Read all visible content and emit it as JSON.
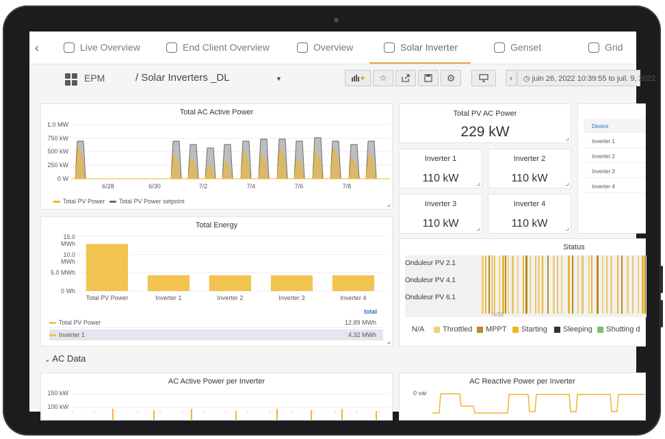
{
  "tabs": {
    "back": "‹",
    "items": [
      {
        "label": "Live Overview"
      },
      {
        "label": "End Client Overview"
      },
      {
        "label": "Overview"
      },
      {
        "label": "Solar Inverter"
      },
      {
        "label": "Genset"
      },
      {
        "label": "Grid"
      }
    ],
    "active": "Solar Inverter"
  },
  "header": {
    "app": "EPM",
    "dashboard": "/ Solar Inverters _DL",
    "time_range": "juin 26, 2022 10:39:55 to juil. 9, 2022"
  },
  "colors": {
    "accent": "#e2a53b",
    "pv": "#f0b428",
    "setpoint": "#6b6b6b",
    "bar": "#f2c34e"
  },
  "ac_power": {
    "title": "Total AC Active Power",
    "y_ticks": [
      "1.0 MW",
      "750 kW",
      "500 kW",
      "250 kW",
      "0 W"
    ],
    "x_ticks": [
      "6/28",
      "6/30",
      "7/2",
      "7/4",
      "7/6",
      "7/8"
    ],
    "legend": [
      "Total PV Power",
      "Total PV Power setpoint"
    ]
  },
  "total_pv": {
    "title": "Total PV AC Power",
    "value": "229 kW"
  },
  "inverters": [
    {
      "title": "Inverter 1",
      "value": "110 kW"
    },
    {
      "title": "Inverter 2",
      "value": "110 kW"
    },
    {
      "title": "Inverter 3",
      "value": "110 kW"
    },
    {
      "title": "Inverter 4",
      "value": "110 kW"
    }
  ],
  "device_table": {
    "header": "Device",
    "rows": [
      "Inverter 1",
      "Inverter 2",
      "Inverter 3",
      "Inverter 4"
    ]
  },
  "energy": {
    "title": "Total Energy",
    "y_ticks": [
      "15.0 MWh",
      "10.0 MWh",
      "5.0 MWh",
      "0 Wh"
    ],
    "total_header": "total",
    "legend_rows": [
      {
        "name": "Total PV Power",
        "total": "12.89 MWh"
      },
      {
        "name": "Inverter 1",
        "total": "4.32 MWh"
      }
    ]
  },
  "status": {
    "title": "Status",
    "rows": [
      "Onduleur PV 2.1",
      "Onduleur PV 4.1",
      "Onduleur PV 6.1"
    ],
    "x_tick": "N/30",
    "legend": [
      {
        "label": "N/A",
        "color": ""
      },
      {
        "label": "Throttled",
        "color": "#f2cf7a"
      },
      {
        "label": "MPPT",
        "color": "#b88a1e"
      },
      {
        "label": "Starting",
        "color": "#f0b428"
      },
      {
        "label": "Sleeping",
        "color": "#333333"
      },
      {
        "label": "Shutting d",
        "color": "#7fbf6a"
      }
    ]
  },
  "section_ac": "AC Data",
  "ac_per_inverter": {
    "title": "AC Active Power per Inverter",
    "y_ticks": [
      "150 kW",
      "100 kW"
    ]
  },
  "reactive": {
    "title": "AC Reactive Power per Inverter",
    "y_tick": "0 var"
  },
  "chart_data": [
    {
      "type": "bar",
      "title": "Total Energy",
      "categories": [
        "Total PV Power",
        "Inverter 1",
        "Inverter 2",
        "Inverter 3",
        "Inverter 4"
      ],
      "values": [
        12.89,
        4.32,
        4.3,
        4.3,
        4.3
      ],
      "ylabel": "",
      "ylim": [
        0,
        15
      ],
      "unit": "MWh"
    }
  ]
}
